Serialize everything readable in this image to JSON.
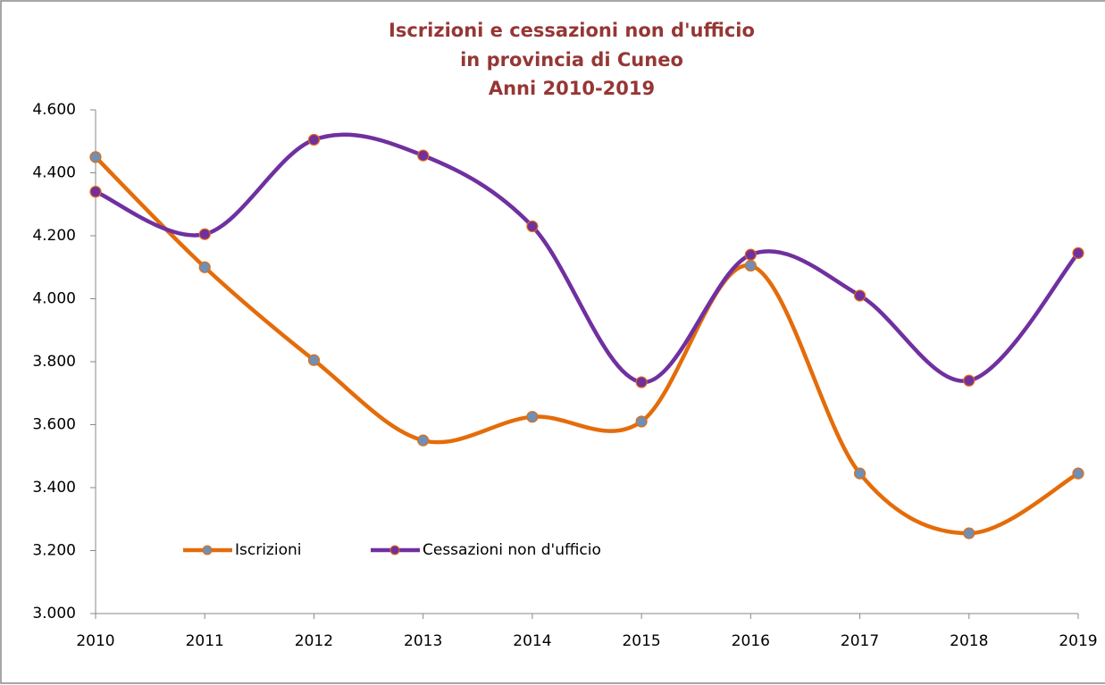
{
  "chart_data": {
    "type": "line",
    "title": [
      "Iscrizioni e cessazioni non d'ufficio",
      "in provincia di Cuneo",
      "Anni 2010-2019"
    ],
    "categories": [
      "2010",
      "2011",
      "2012",
      "2013",
      "2014",
      "2015",
      "2016",
      "2017",
      "2018",
      "2019"
    ],
    "series": [
      {
        "name": "Iscrizioni",
        "color": "#e46c0a",
        "marker_color": "#6f8fb5",
        "values": [
          4450,
          4100,
          3805,
          3550,
          3625,
          3610,
          4105,
          3445,
          3255,
          3445
        ]
      },
      {
        "name": "Cessazioni non d'ufficio",
        "color": "#7030a0",
        "marker_color": "#7030a0",
        "values": [
          4340,
          4205,
          4505,
          4455,
          4230,
          3735,
          4140,
          4010,
          3740,
          4145
        ]
      }
    ],
    "ylim": [
      3000,
      4600
    ],
    "yticks": [
      {
        "value": 3000,
        "label": "3.000"
      },
      {
        "value": 3200,
        "label": "3.200"
      },
      {
        "value": 3400,
        "label": "3.400"
      },
      {
        "value": 3600,
        "label": "3.600"
      },
      {
        "value": 3800,
        "label": "3.800"
      },
      {
        "value": 4000,
        "label": "4.000"
      },
      {
        "value": 4200,
        "label": "4.200"
      },
      {
        "value": 4400,
        "label": "4.400"
      },
      {
        "value": 4600,
        "label": "4.600"
      }
    ],
    "smooth": true,
    "legend": "bottom-left"
  }
}
